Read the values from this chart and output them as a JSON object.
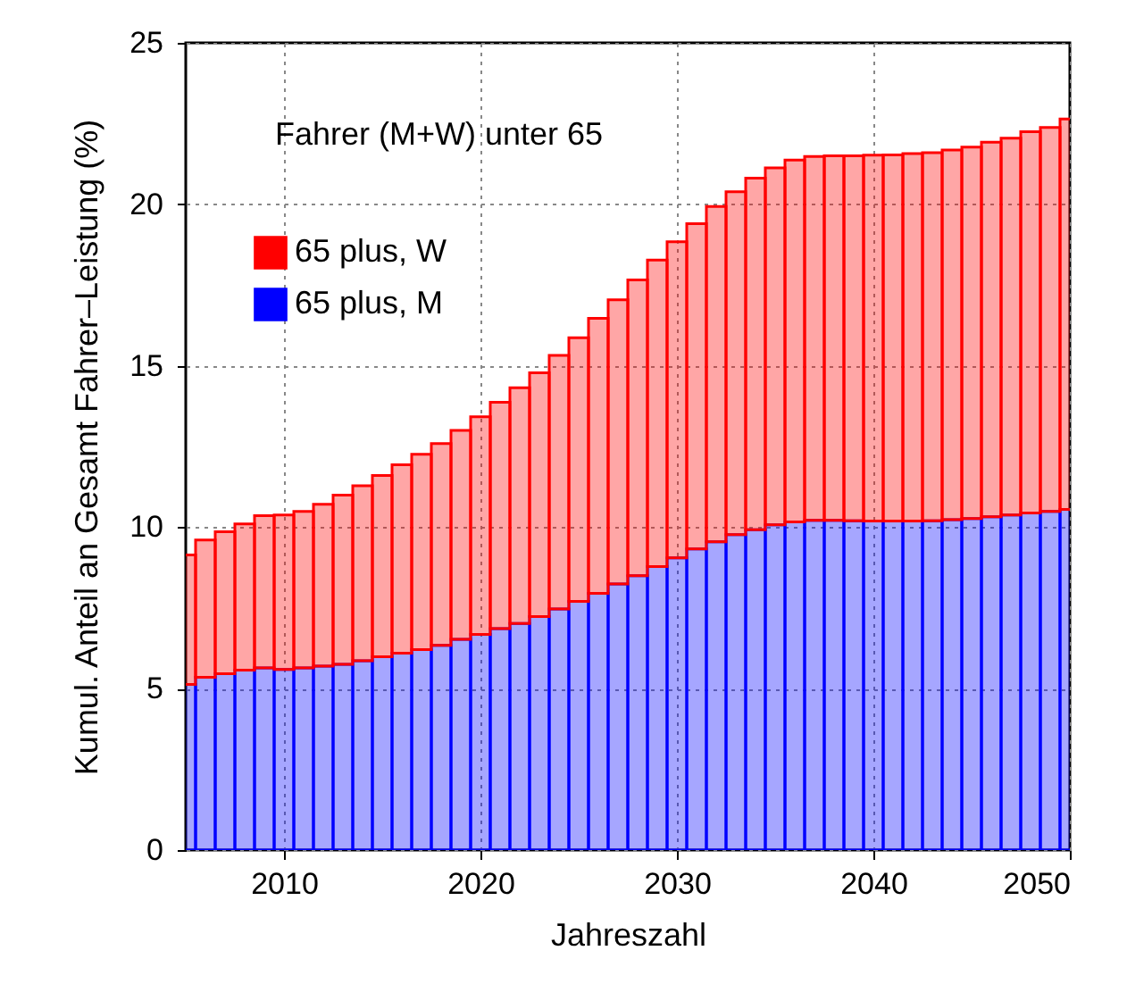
{
  "chart_data": {
    "type": "bar",
    "stacked": true,
    "xlabel": "Jahreszahl",
    "ylabel": "Kumul. Anteil an Gesamt Fahrer–Leistung (%)",
    "x": [
      2005,
      2006,
      2007,
      2008,
      2009,
      2010,
      2011,
      2012,
      2013,
      2014,
      2015,
      2016,
      2017,
      2018,
      2019,
      2020,
      2021,
      2022,
      2023,
      2024,
      2025,
      2026,
      2027,
      2028,
      2029,
      2030,
      2031,
      2032,
      2033,
      2034,
      2035,
      2036,
      2037,
      2038,
      2039,
      2040,
      2041,
      2042,
      2043,
      2044,
      2045,
      2046,
      2047,
      2048,
      2049,
      2050
    ],
    "series": [
      {
        "name": "65 plus, M",
        "color": "#0000ff",
        "values": [
          5.13,
          5.35,
          5.46,
          5.57,
          5.64,
          5.59,
          5.64,
          5.7,
          5.75,
          5.86,
          5.99,
          6.1,
          6.21,
          6.34,
          6.53,
          6.68,
          6.86,
          7.02,
          7.23,
          7.47,
          7.7,
          7.95,
          8.24,
          8.5,
          8.78,
          9.05,
          9.33,
          9.55,
          9.77,
          9.92,
          10.07,
          10.16,
          10.21,
          10.21,
          10.2,
          10.19,
          10.19,
          10.19,
          10.2,
          10.23,
          10.27,
          10.32,
          10.38,
          10.44,
          10.49,
          10.55
        ]
      },
      {
        "name": "65 plus, W",
        "color": "#ff0000",
        "values": [
          4.01,
          4.25,
          4.4,
          4.53,
          4.72,
          4.79,
          4.85,
          5.01,
          5.24,
          5.42,
          5.61,
          5.83,
          6.05,
          6.25,
          6.47,
          6.74,
          7.01,
          7.3,
          7.55,
          7.85,
          8.17,
          8.52,
          8.8,
          9.16,
          9.49,
          9.79,
          10.07,
          10.38,
          10.62,
          10.89,
          11.06,
          11.21,
          11.27,
          11.29,
          11.3,
          11.33,
          11.34,
          11.38,
          11.4,
          11.45,
          11.5,
          11.6,
          11.67,
          11.81,
          11.89,
          12.09
        ]
      }
    ],
    "xlim": [
      2005,
      2050
    ],
    "xticks": [
      2010,
      2020,
      2030,
      2040,
      2050
    ],
    "ylim": [
      0,
      25
    ],
    "yticks": [
      0,
      5,
      10,
      15,
      20,
      25
    ],
    "grid": true,
    "legend": "top left",
    "annotations": [
      "Fahrer (M+W) unter 65"
    ]
  }
}
